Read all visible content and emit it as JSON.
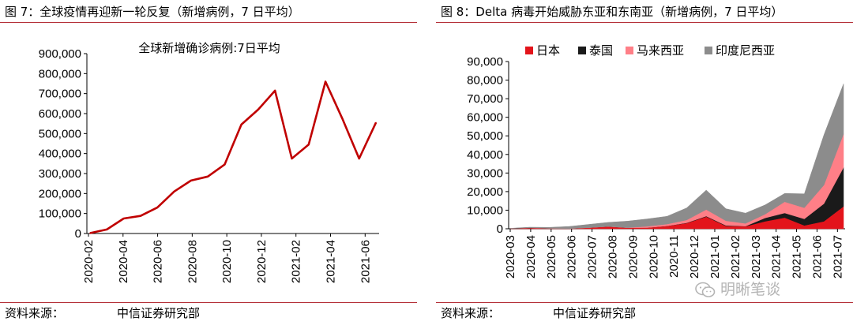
{
  "left": {
    "figure_title": "图 7：全球疫情再迎新一轮反复（新增病例，7 日平均）",
    "source_label": "资料来源：",
    "source_value": "中信证券研究部"
  },
  "right": {
    "figure_title": "图 8：Delta 病毒开始威胁东亚和东南亚（新增病例，7 日平均）",
    "source_label": "资料来源：",
    "source_value": "中信证券研究部"
  },
  "watermark": {
    "text": "明晰笔谈",
    "icon": "wechat-icon"
  },
  "chart_data": [
    {
      "type": "line",
      "title": "全球新增确诊病例:7日平均",
      "x_ticks": [
        "2020-02",
        "2020-04",
        "2020-06",
        "2020-08",
        "2020-10",
        "2020-12",
        "2021-02",
        "2021-04",
        "2021-06"
      ],
      "y_ticks": [
        "0",
        "100,000",
        "200,000",
        "300,000",
        "400,000",
        "500,000",
        "600,000",
        "700,000",
        "800,000",
        "900,000"
      ],
      "ylim": [
        0,
        900000
      ],
      "x": [
        "2020-02",
        "2020-03",
        "2020-04",
        "2020-05",
        "2020-06",
        "2020-07",
        "2020-08",
        "2020-09",
        "2020-10",
        "2020-11",
        "2020-12",
        "2021-01",
        "2021-02",
        "2021-03",
        "2021-04",
        "2021-05",
        "2021-06",
        "2021-07"
      ],
      "series": [
        {
          "color": "#c00000",
          "values": [
            2000,
            20000,
            75000,
            88000,
            130000,
            210000,
            265000,
            285000,
            345000,
            545000,
            620000,
            715000,
            375000,
            445000,
            760000,
            575000,
            375000,
            555000
          ]
        }
      ],
      "grid": false
    },
    {
      "type": "area",
      "stacked": true,
      "x_ticks": [
        "2020-03",
        "2020-04",
        "2020-05",
        "2020-06",
        "2020-07",
        "2020-08",
        "2020-09",
        "2020-10",
        "2020-11",
        "2020-12",
        "2021-01",
        "2021-02",
        "2021-03",
        "2021-04",
        "2021-05",
        "2021-06",
        "2021-07"
      ],
      "y_ticks": [
        "0",
        "10,000",
        "20,000",
        "30,000",
        "40,000",
        "50,000",
        "60,000",
        "70,000",
        "80,000",
        "90,000"
      ],
      "ylim": [
        0,
        90000
      ],
      "legend_position": "top",
      "x": [
        "2020-03",
        "2020-04",
        "2020-05",
        "2020-06",
        "2020-07",
        "2020-08",
        "2020-09",
        "2020-10",
        "2020-11",
        "2020-12",
        "2021-01",
        "2021-02",
        "2021-03",
        "2021-04",
        "2021-05",
        "2021-06",
        "2021-07",
        "2021-07-end"
      ],
      "series": [
        {
          "name": "日本",
          "color": "#e3141b",
          "values": [
            50,
            400,
            200,
            100,
            600,
            1200,
            500,
            600,
            1500,
            3000,
            6500,
            1500,
            1300,
            4000,
            6000,
            1800,
            4000,
            12000
          ]
        },
        {
          "name": "泰国",
          "color": "#1a1a1a",
          "values": [
            100,
            50,
            10,
            5,
            5,
            5,
            5,
            5,
            10,
            200,
            300,
            300,
            100,
            1800,
            2500,
            3500,
            9500,
            21000
          ]
        },
        {
          "name": "马来西亚",
          "color": "#ff7f87",
          "values": [
            50,
            100,
            50,
            10,
            10,
            50,
            100,
            700,
            1000,
            1500,
            3500,
            2500,
            1500,
            2000,
            6000,
            6000,
            10000,
            18000
          ]
        },
        {
          "name": "印度尼西亚",
          "color": "#8c8c8c",
          "values": [
            50,
            300,
            500,
            1100,
            1700,
            2200,
            3500,
            4000,
            4200,
            6500,
            10500,
            6500,
            5500,
            5000,
            4500,
            7500,
            27000,
            27000
          ]
        }
      ],
      "grid": false
    }
  ]
}
